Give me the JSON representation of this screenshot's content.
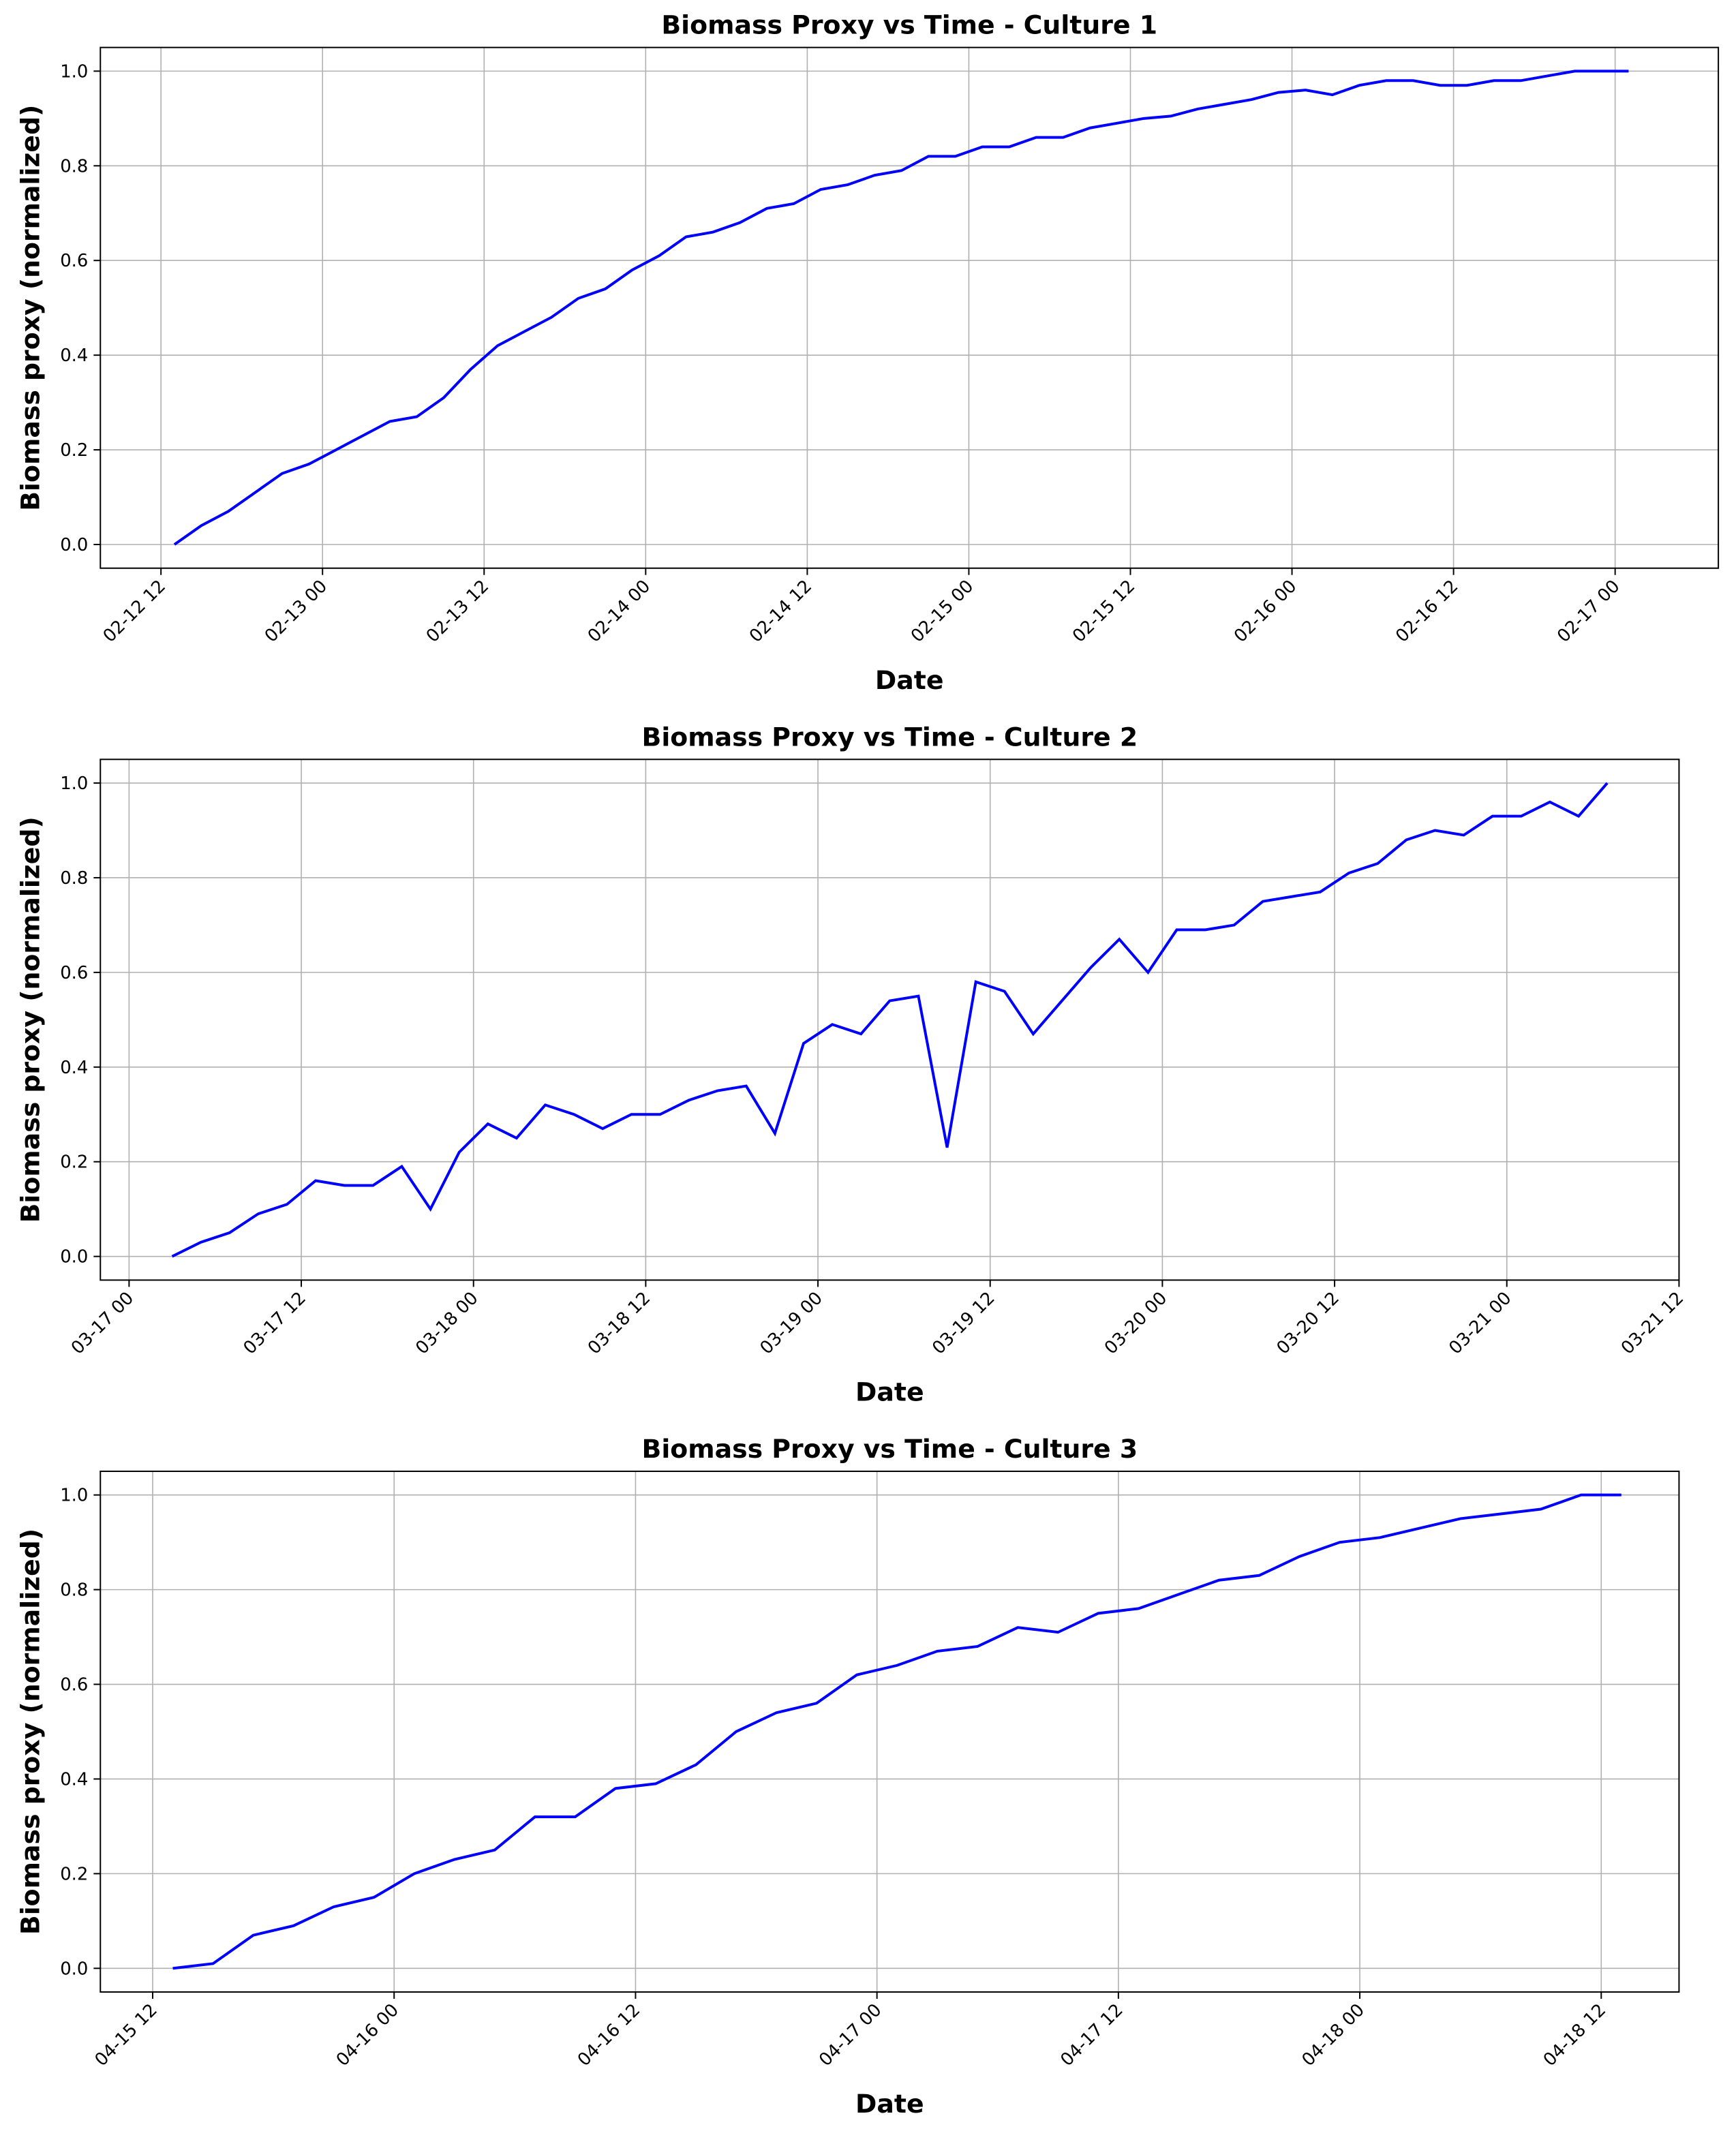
{
  "chart_data": [
    {
      "type": "line",
      "title": "Biomass Proxy vs Time - Culture 1",
      "xlabel": "Date",
      "ylabel": "Biomass proxy (normalized)",
      "color": "#0000ff",
      "grid": true,
      "xlim": [
        "02-12 07:30",
        "02-17 07:40"
      ],
      "xticks": [
        "02-12 12",
        "02-13 00",
        "02-13 12",
        "02-14 00",
        "02-14 12",
        "02-15 00",
        "02-15 12",
        "02-16 00",
        "02-16 12",
        "02-17 00"
      ],
      "ylim": [
        -0.05,
        1.05
      ],
      "yticks": [
        {
          "value": 0,
          "label": "0.0"
        },
        0.2,
        0.4,
        0.6,
        0.8,
        {
          "value": 1,
          "label": "1.0"
        }
      ],
      "x": [
        "02-12 13",
        "02-12 15",
        "02-12 17",
        "02-12 19",
        "02-12 21",
        "02-12 23",
        "02-13 01",
        "02-13 03",
        "02-13 05",
        "02-13 07",
        "02-13 09",
        "02-13 11",
        "02-13 13",
        "02-13 15",
        "02-13 17",
        "02-13 19",
        "02-13 21",
        "02-13 23",
        "02-14 01",
        "02-14 03",
        "02-14 05",
        "02-14 07",
        "02-14 09",
        "02-14 11",
        "02-14 13",
        "02-14 15",
        "02-14 17",
        "02-14 19",
        "02-14 21",
        "02-14 23",
        "02-15 01",
        "02-15 03",
        "02-15 05",
        "02-15 07",
        "02-15 09",
        "02-15 11",
        "02-15 13",
        "02-15 15",
        "02-15 17",
        "02-15 19",
        "02-15 21",
        "02-15 23",
        "02-16 01",
        "02-16 03",
        "02-16 05",
        "02-16 07",
        "02-16 09",
        "02-16 11",
        "02-16 13",
        "02-16 15",
        "02-16 17",
        "02-16 19",
        "02-16 21",
        "02-16 23",
        "02-17 01"
      ],
      "values": [
        0,
        0.04,
        0.07,
        0.11,
        0.15,
        0.17,
        0.2,
        0.23,
        0.26,
        0.27,
        0.31,
        0.37,
        0.42,
        0.45,
        0.48,
        0.52,
        0.54,
        0.58,
        0.61,
        0.65,
        0.66,
        0.68,
        0.71,
        0.72,
        0.75,
        0.76,
        0.78,
        0.79,
        0.82,
        0.82,
        0.84,
        0.84,
        0.86,
        0.86,
        0.88,
        0.89,
        0.9,
        0.905,
        0.92,
        0.93,
        0.94,
        0.955,
        0.96,
        0.95,
        0.97,
        0.98,
        0.98,
        0.97,
        0.97,
        0.98,
        0.98,
        0.99,
        1,
        1,
        1
      ]
    },
    {
      "type": "line",
      "title": "Biomass Proxy vs Time - Culture 2",
      "xlabel": "Date",
      "ylabel": "Biomass proxy (normalized)",
      "color": "#0000ff",
      "grid": true,
      "xlim": [
        "03-16 22",
        "03-21 12"
      ],
      "xticks": [
        "03-17 00",
        "03-17 12",
        "03-18 00",
        "03-18 12",
        "03-19 00",
        "03-19 12",
        "03-20 00",
        "03-20 12",
        "03-21 00",
        "03-21 12"
      ],
      "ylim": [
        -0.05,
        1.05
      ],
      "yticks": [
        {
          "value": 0,
          "label": "0.0"
        },
        0.2,
        0.4,
        0.6,
        0.8,
        {
          "value": 1,
          "label": "1.0"
        }
      ],
      "x": [
        "03-17 03",
        "03-17 05",
        "03-17 07",
        "03-17 09",
        "03-17 11",
        "03-17 13",
        "03-17 15",
        "03-17 17",
        "03-17 19",
        "03-17 21",
        "03-17 23",
        "03-18 01",
        "03-18 03",
        "03-18 05",
        "03-18 07",
        "03-18 09",
        "03-18 11",
        "03-18 13",
        "03-18 15",
        "03-18 17",
        "03-18 19",
        "03-18 21",
        "03-18 23",
        "03-19 01",
        "03-19 03",
        "03-19 05",
        "03-19 07",
        "03-19 09",
        "03-19 11",
        "03-19 13",
        "03-19 15",
        "03-19 17",
        "03-19 19",
        "03-19 21",
        "03-19 23",
        "03-20 01",
        "03-20 03",
        "03-20 05",
        "03-20 07",
        "03-20 09",
        "03-20 11",
        "03-20 13",
        "03-20 15",
        "03-20 17",
        "03-20 19",
        "03-20 21",
        "03-20 23",
        "03-21 01",
        "03-21 03",
        "03-21 05",
        "03-21 07"
      ],
      "values": [
        0,
        0.03,
        0.05,
        0.09,
        0.11,
        0.16,
        0.15,
        0.15,
        0.19,
        0.1,
        0.22,
        0.28,
        0.25,
        0.32,
        0.3,
        0.27,
        0.3,
        0.3,
        0.33,
        0.35,
        0.36,
        0.26,
        0.45,
        0.49,
        0.47,
        0.54,
        0.55,
        0.23,
        0.58,
        0.56,
        0.47,
        0.54,
        0.61,
        0.67,
        0.6,
        0.69,
        0.69,
        0.7,
        0.75,
        0.76,
        0.77,
        0.81,
        0.83,
        0.88,
        0.9,
        0.89,
        0.93,
        0.93,
        0.96,
        0.93,
        1
      ]
    },
    {
      "type": "line",
      "title": "Biomass Proxy vs Time - Culture 3",
      "xlabel": "Date",
      "ylabel": "Biomass proxy (normalized)",
      "color": "#0000ff",
      "grid": true,
      "xlim": [
        "04-15 09:24",
        "04-18 15:52"
      ],
      "xticks": [
        "04-15 12",
        "04-16 00",
        "04-16 12",
        "04-17 00",
        "04-17 12",
        "04-18 00",
        "04-18 12"
      ],
      "ylim": [
        -0.05,
        1.05
      ],
      "yticks": [
        {
          "value": 0,
          "label": "0.0"
        },
        0.2,
        0.4,
        0.6,
        0.8,
        {
          "value": 1,
          "label": "1.0"
        }
      ],
      "x": [
        "04-15 13",
        "04-15 15",
        "04-15 17",
        "04-15 19",
        "04-15 21",
        "04-15 23",
        "04-16 01",
        "04-16 03",
        "04-16 05",
        "04-16 07",
        "04-16 09",
        "04-16 11",
        "04-16 13",
        "04-16 15",
        "04-16 17",
        "04-16 19",
        "04-16 21",
        "04-16 23",
        "04-17 01",
        "04-17 03",
        "04-17 05",
        "04-17 07",
        "04-17 09",
        "04-17 11",
        "04-17 13",
        "04-17 15",
        "04-17 17",
        "04-17 19",
        "04-17 21",
        "04-17 23",
        "04-18 01",
        "04-18 03",
        "04-18 05",
        "04-18 07",
        "04-18 09",
        "04-18 11",
        "04-18 13"
      ],
      "values": [
        0,
        0.01,
        0.07,
        0.09,
        0.13,
        0.15,
        0.2,
        0.23,
        0.25,
        0.32,
        0.32,
        0.38,
        0.39,
        0.43,
        0.5,
        0.54,
        0.56,
        0.62,
        0.64,
        0.67,
        0.68,
        0.72,
        0.71,
        0.75,
        0.76,
        0.79,
        0.82,
        0.83,
        0.87,
        0.9,
        0.91,
        0.93,
        0.95,
        0.96,
        0.97,
        1,
        1
      ]
    }
  ]
}
